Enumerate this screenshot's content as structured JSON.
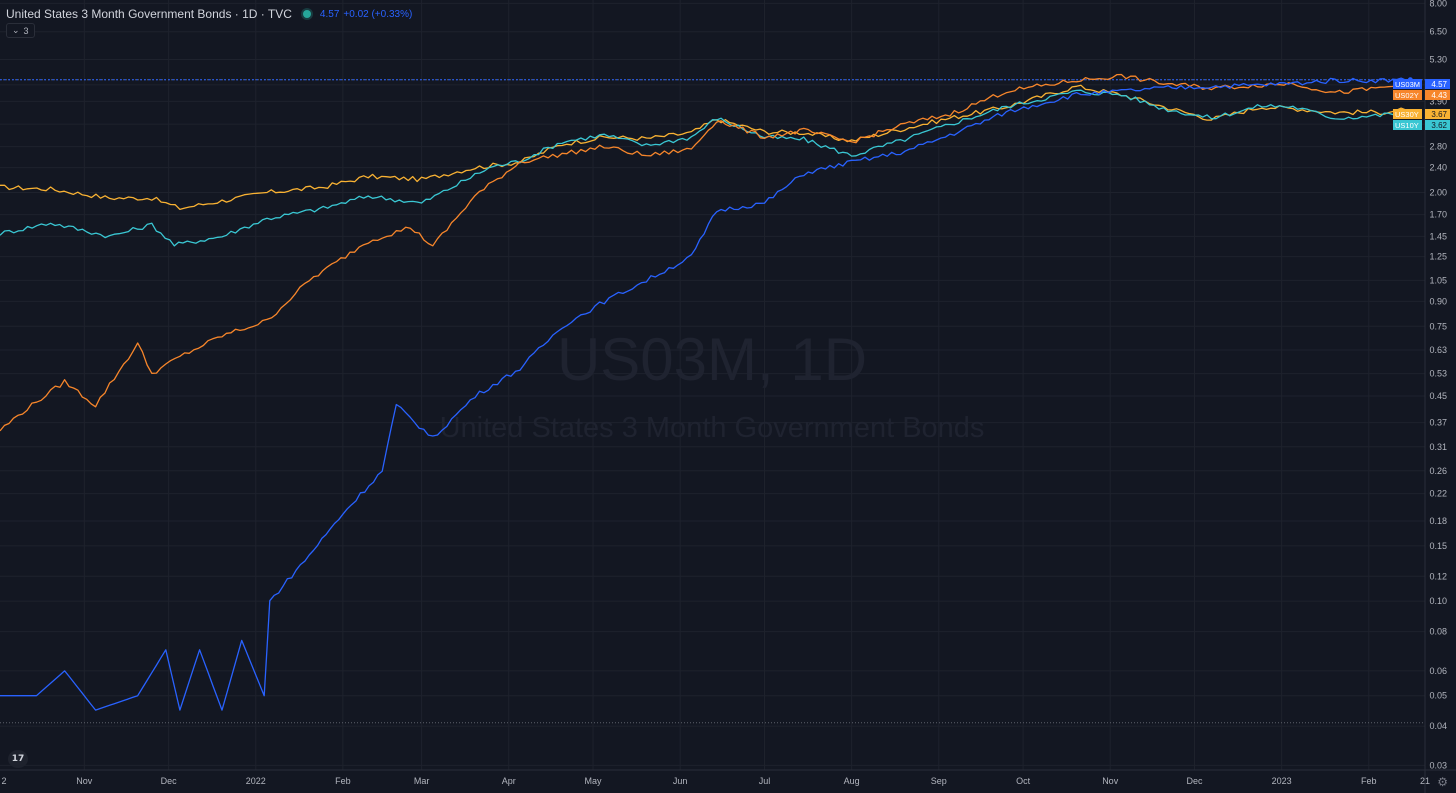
{
  "header": {
    "title": "United States 3 Month Government Bonds · 1D · TVC",
    "price": "4.57",
    "change": "+0.02 (+0.33%)",
    "collapse_label": "3"
  },
  "watermark": {
    "symbol": "US03M, 1D",
    "description": "United States 3 Month Government Bonds"
  },
  "logo_text": "17",
  "colors": {
    "background": "#131722",
    "grid": "#1e222d",
    "axis_text": "#b2b5be",
    "US03M": "#2962ff",
    "US02Y": "#f7862b",
    "US30Y": "#f9b233",
    "US10Y": "#3ac7d3"
  },
  "chart_data": {
    "type": "line",
    "yscale": "log",
    "ylim": [
      0.029,
      8.2
    ],
    "y_ticks": [
      "8.00",
      "6.50",
      "5.30",
      "4.40",
      "3.90",
      "3.30",
      "2.80",
      "2.40",
      "2.00",
      "1.70",
      "1.45",
      "1.25",
      "1.05",
      "0.90",
      "0.75",
      "0.63",
      "0.53",
      "0.45",
      "0.37",
      "0.31",
      "0.26",
      "0.22",
      "0.18",
      "0.15",
      "0.12",
      "0.10",
      "0.08",
      "0.06",
      "0.05",
      "0.04",
      "0.03"
    ],
    "x_ticks": [
      "2",
      "Nov",
      "Dec",
      "2022",
      "Feb",
      "Mar",
      "Apr",
      "May",
      "Jun",
      "Jul",
      "Aug",
      "Sep",
      "Oct",
      "Nov",
      "Dec",
      "2023",
      "Feb",
      "21"
    ],
    "x_range": [
      "2021-10-02",
      "2023-02-21"
    ],
    "dotted_reference_lines": [
      4.57,
      0.041
    ],
    "series": [
      {
        "name": "US30Y",
        "color": "#f9b233",
        "badge": "3.67",
        "points": [
          [
            "2021-10-02",
            2.08
          ],
          [
            "2021-10-20",
            2.05
          ],
          [
            "2021-11-10",
            1.92
          ],
          [
            "2021-11-25",
            1.92
          ],
          [
            "2021-12-05",
            1.78
          ],
          [
            "2021-12-20",
            1.88
          ],
          [
            "2022-01-05",
            2.0
          ],
          [
            "2022-01-25",
            2.08
          ],
          [
            "2022-02-10",
            2.25
          ],
          [
            "2022-03-01",
            2.2
          ],
          [
            "2022-03-20",
            2.4
          ],
          [
            "2022-04-05",
            2.5
          ],
          [
            "2022-04-20",
            2.85
          ],
          [
            "2022-05-05",
            3.0
          ],
          [
            "2022-05-20",
            2.97
          ],
          [
            "2022-06-05",
            3.1
          ],
          [
            "2022-06-14",
            3.42
          ],
          [
            "2022-07-01",
            3.12
          ],
          [
            "2022-07-15",
            3.1
          ],
          [
            "2022-08-01",
            2.92
          ],
          [
            "2022-08-20",
            3.2
          ],
          [
            "2022-09-05",
            3.45
          ],
          [
            "2022-09-25",
            3.75
          ],
          [
            "2022-10-20",
            4.35
          ],
          [
            "2022-11-05",
            4.1
          ],
          [
            "2022-11-20",
            3.75
          ],
          [
            "2022-12-07",
            3.42
          ],
          [
            "2022-12-25",
            3.75
          ],
          [
            "2023-01-05",
            3.7
          ],
          [
            "2023-01-20",
            3.6
          ],
          [
            "2023-02-05",
            3.6
          ],
          [
            "2023-02-14",
            3.67
          ]
        ]
      },
      {
        "name": "US10Y",
        "color": "#3ac7d3",
        "badge": "3.62",
        "points": [
          [
            "2021-10-02",
            1.48
          ],
          [
            "2021-10-20",
            1.6
          ],
          [
            "2021-11-10",
            1.45
          ],
          [
            "2021-11-25",
            1.58
          ],
          [
            "2021-12-03",
            1.36
          ],
          [
            "2021-12-20",
            1.45
          ],
          [
            "2022-01-05",
            1.65
          ],
          [
            "2022-01-25",
            1.78
          ],
          [
            "2022-02-10",
            1.95
          ],
          [
            "2022-03-01",
            1.85
          ],
          [
            "2022-03-15",
            2.15
          ],
          [
            "2022-03-25",
            2.4
          ],
          [
            "2022-04-05",
            2.52
          ],
          [
            "2022-04-20",
            2.9
          ],
          [
            "2022-05-05",
            3.05
          ],
          [
            "2022-05-20",
            2.82
          ],
          [
            "2022-06-05",
            3.0
          ],
          [
            "2022-06-14",
            3.45
          ],
          [
            "2022-07-01",
            3.0
          ],
          [
            "2022-07-15",
            2.95
          ],
          [
            "2022-08-01",
            2.62
          ],
          [
            "2022-08-20",
            2.95
          ],
          [
            "2022-09-05",
            3.3
          ],
          [
            "2022-09-25",
            3.75
          ],
          [
            "2022-10-20",
            4.2
          ],
          [
            "2022-11-05",
            4.1
          ],
          [
            "2022-11-20",
            3.7
          ],
          [
            "2022-12-07",
            3.45
          ],
          [
            "2022-12-25",
            3.78
          ],
          [
            "2023-01-05",
            3.75
          ],
          [
            "2023-01-20",
            3.45
          ],
          [
            "2023-02-05",
            3.52
          ],
          [
            "2023-02-14",
            3.62
          ]
        ]
      },
      {
        "name": "US02Y",
        "color": "#f7862b",
        "badge": "4.43",
        "points": [
          [
            "2021-10-02",
            0.35
          ],
          [
            "2021-10-10",
            0.4
          ],
          [
            "2021-10-25",
            0.5
          ],
          [
            "2021-11-05",
            0.42
          ],
          [
            "2021-11-20",
            0.66
          ],
          [
            "2021-11-25",
            0.53
          ],
          [
            "2021-12-05",
            0.6
          ],
          [
            "2021-12-20",
            0.7
          ],
          [
            "2022-01-05",
            0.78
          ],
          [
            "2022-01-20",
            1.05
          ],
          [
            "2022-02-10",
            1.4
          ],
          [
            "2022-02-25",
            1.55
          ],
          [
            "2022-03-05",
            1.35
          ],
          [
            "2022-03-20",
            1.95
          ],
          [
            "2022-04-05",
            2.5
          ],
          [
            "2022-04-20",
            2.65
          ],
          [
            "2022-05-05",
            2.8
          ],
          [
            "2022-05-20",
            2.62
          ],
          [
            "2022-06-05",
            2.75
          ],
          [
            "2022-06-14",
            3.4
          ],
          [
            "2022-07-01",
            3.0
          ],
          [
            "2022-07-15",
            3.15
          ],
          [
            "2022-08-01",
            2.9
          ],
          [
            "2022-08-20",
            3.3
          ],
          [
            "2022-09-05",
            3.55
          ],
          [
            "2022-09-25",
            4.2
          ],
          [
            "2022-10-20",
            4.55
          ],
          [
            "2022-11-05",
            4.7
          ],
          [
            "2022-11-20",
            4.45
          ],
          [
            "2022-12-07",
            4.3
          ],
          [
            "2022-12-25",
            4.4
          ],
          [
            "2023-01-05",
            4.45
          ],
          [
            "2023-01-20",
            4.15
          ],
          [
            "2023-02-05",
            4.3
          ],
          [
            "2023-02-14",
            4.43
          ]
        ]
      },
      {
        "name": "US03M",
        "color": "#2962ff",
        "badge": "4.57",
        "points": [
          [
            "2021-10-02",
            0.05
          ],
          [
            "2021-10-15",
            0.05
          ],
          [
            "2021-10-25",
            0.06
          ],
          [
            "2021-11-05",
            0.045
          ],
          [
            "2021-11-20",
            0.05
          ],
          [
            "2021-11-30",
            0.07
          ],
          [
            "2021-12-05",
            0.045
          ],
          [
            "2021-12-12",
            0.07
          ],
          [
            "2021-12-20",
            0.045
          ],
          [
            "2021-12-27",
            0.075
          ],
          [
            "2022-01-04",
            0.05
          ],
          [
            "2022-01-06",
            0.1
          ],
          [
            "2022-01-20",
            0.14
          ],
          [
            "2022-02-01",
            0.19
          ],
          [
            "2022-02-15",
            0.26
          ],
          [
            "2022-02-20",
            0.42
          ],
          [
            "2022-03-05",
            0.33
          ],
          [
            "2022-03-20",
            0.45
          ],
          [
            "2022-04-05",
            0.55
          ],
          [
            "2022-04-20",
            0.75
          ],
          [
            "2022-05-05",
            0.9
          ],
          [
            "2022-05-20",
            1.05
          ],
          [
            "2022-06-05",
            1.25
          ],
          [
            "2022-06-14",
            1.75
          ],
          [
            "2022-07-01",
            1.85
          ],
          [
            "2022-07-15",
            2.3
          ],
          [
            "2022-08-01",
            2.5
          ],
          [
            "2022-08-20",
            2.7
          ],
          [
            "2022-09-05",
            3.05
          ],
          [
            "2022-09-25",
            3.6
          ],
          [
            "2022-10-20",
            4.1
          ],
          [
            "2022-11-05",
            4.2
          ],
          [
            "2022-11-20",
            4.3
          ],
          [
            "2022-12-07",
            4.35
          ],
          [
            "2022-12-25",
            4.4
          ],
          [
            "2023-01-05",
            4.45
          ],
          [
            "2023-01-20",
            4.55
          ],
          [
            "2023-02-05",
            4.55
          ],
          [
            "2023-02-14",
            4.57
          ]
        ]
      }
    ]
  }
}
